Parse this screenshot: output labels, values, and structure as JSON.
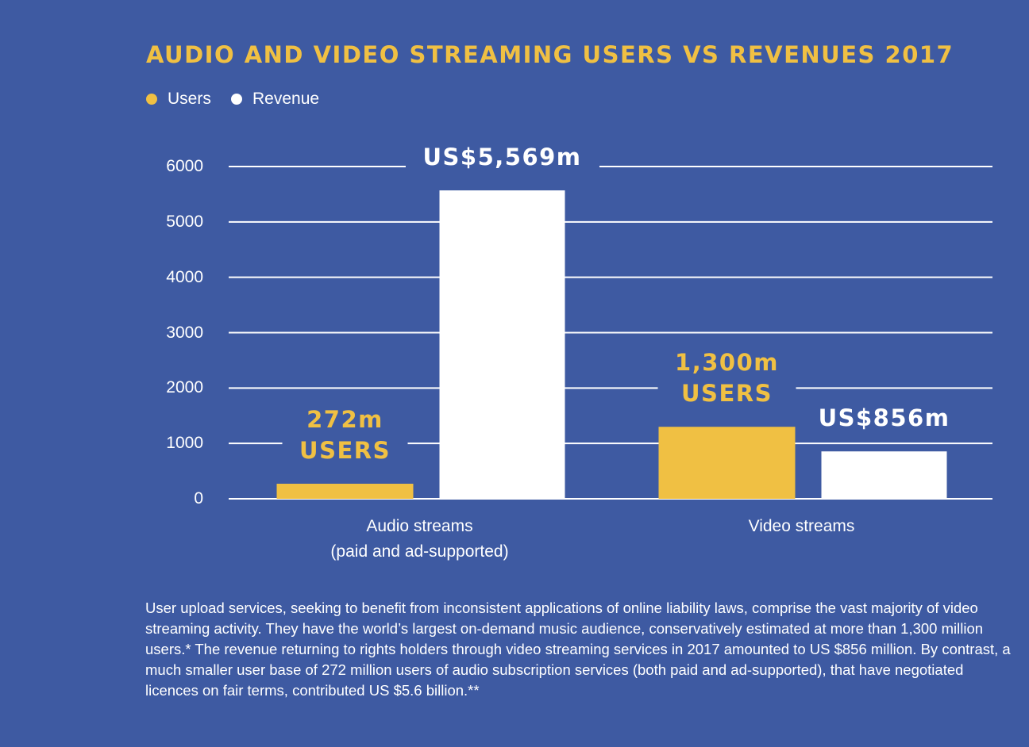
{
  "chart_data": {
    "type": "bar",
    "title": "AUDIO AND VIDEO STREAMING USERS VS REVENUES 2017",
    "categories": [
      "Audio streams\n(paid and ad-supported)",
      "Video streams"
    ],
    "series": [
      {
        "name": "Users",
        "color": "#f0c043",
        "values": [
          272,
          1300
        ],
        "value_labels": [
          "272m\nUSERS",
          "1,300m\nUSERS"
        ]
      },
      {
        "name": "Revenue",
        "color": "#ffffff",
        "values": [
          5569,
          856
        ],
        "value_labels": [
          "US$5,569m",
          "US$856m"
        ]
      }
    ],
    "ylim": [
      0,
      6000
    ],
    "yticks": [
      0,
      1000,
      2000,
      3000,
      4000,
      5000,
      6000
    ],
    "grid": true,
    "note": "User upload services, seeking to benefit from inconsistent applications of online liability laws, comprise the vast majority of video streaming activity.  They have the world’s largest on-demand music audience, conservatively estimated at more than 1,300 million users.* The revenue returning to rights holders through video streaming services in 2017 amounted to US $856 million. By contrast, a much smaller user base of 272 million users of audio subscription services (both paid and ad-supported), that have negotiated licences on fair terms, contributed US $5.6 billion.**"
  }
}
